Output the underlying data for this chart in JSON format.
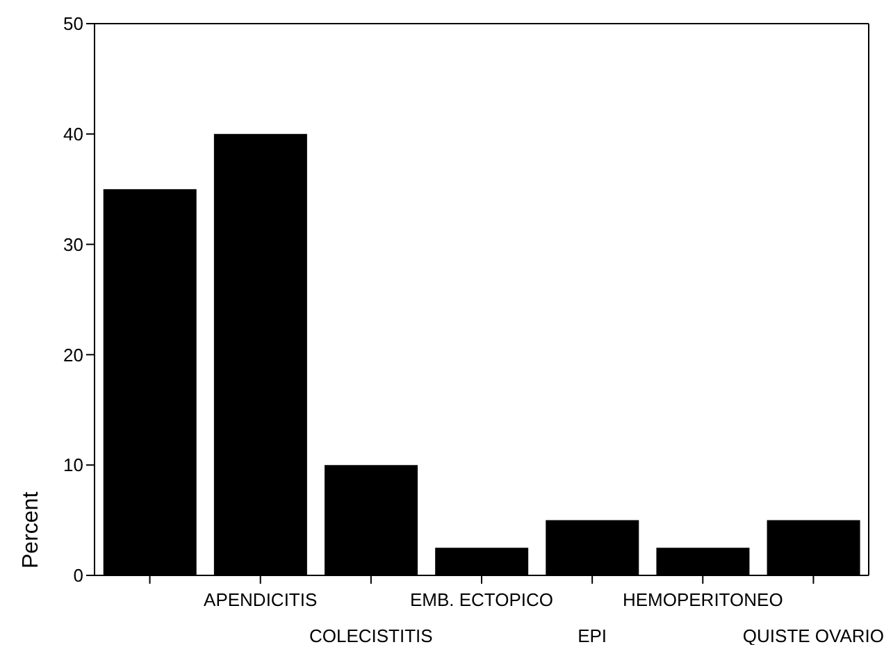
{
  "chart_data": {
    "type": "bar",
    "ylabel": "Percent",
    "categories": [
      null,
      "APENDICITIS",
      "COLECISTITIS",
      "EMB. ECTOPICO",
      "EPI",
      "HEMOPERITONEO",
      "QUISTE OVARIO"
    ],
    "values": [
      35,
      40,
      10,
      2.5,
      5,
      2.5,
      5
    ],
    "color": "#000000",
    "ylim": [
      0,
      50
    ],
    "yticks": [
      0,
      10,
      20,
      30,
      40,
      50
    ],
    "grid": false,
    "legend": false
  }
}
